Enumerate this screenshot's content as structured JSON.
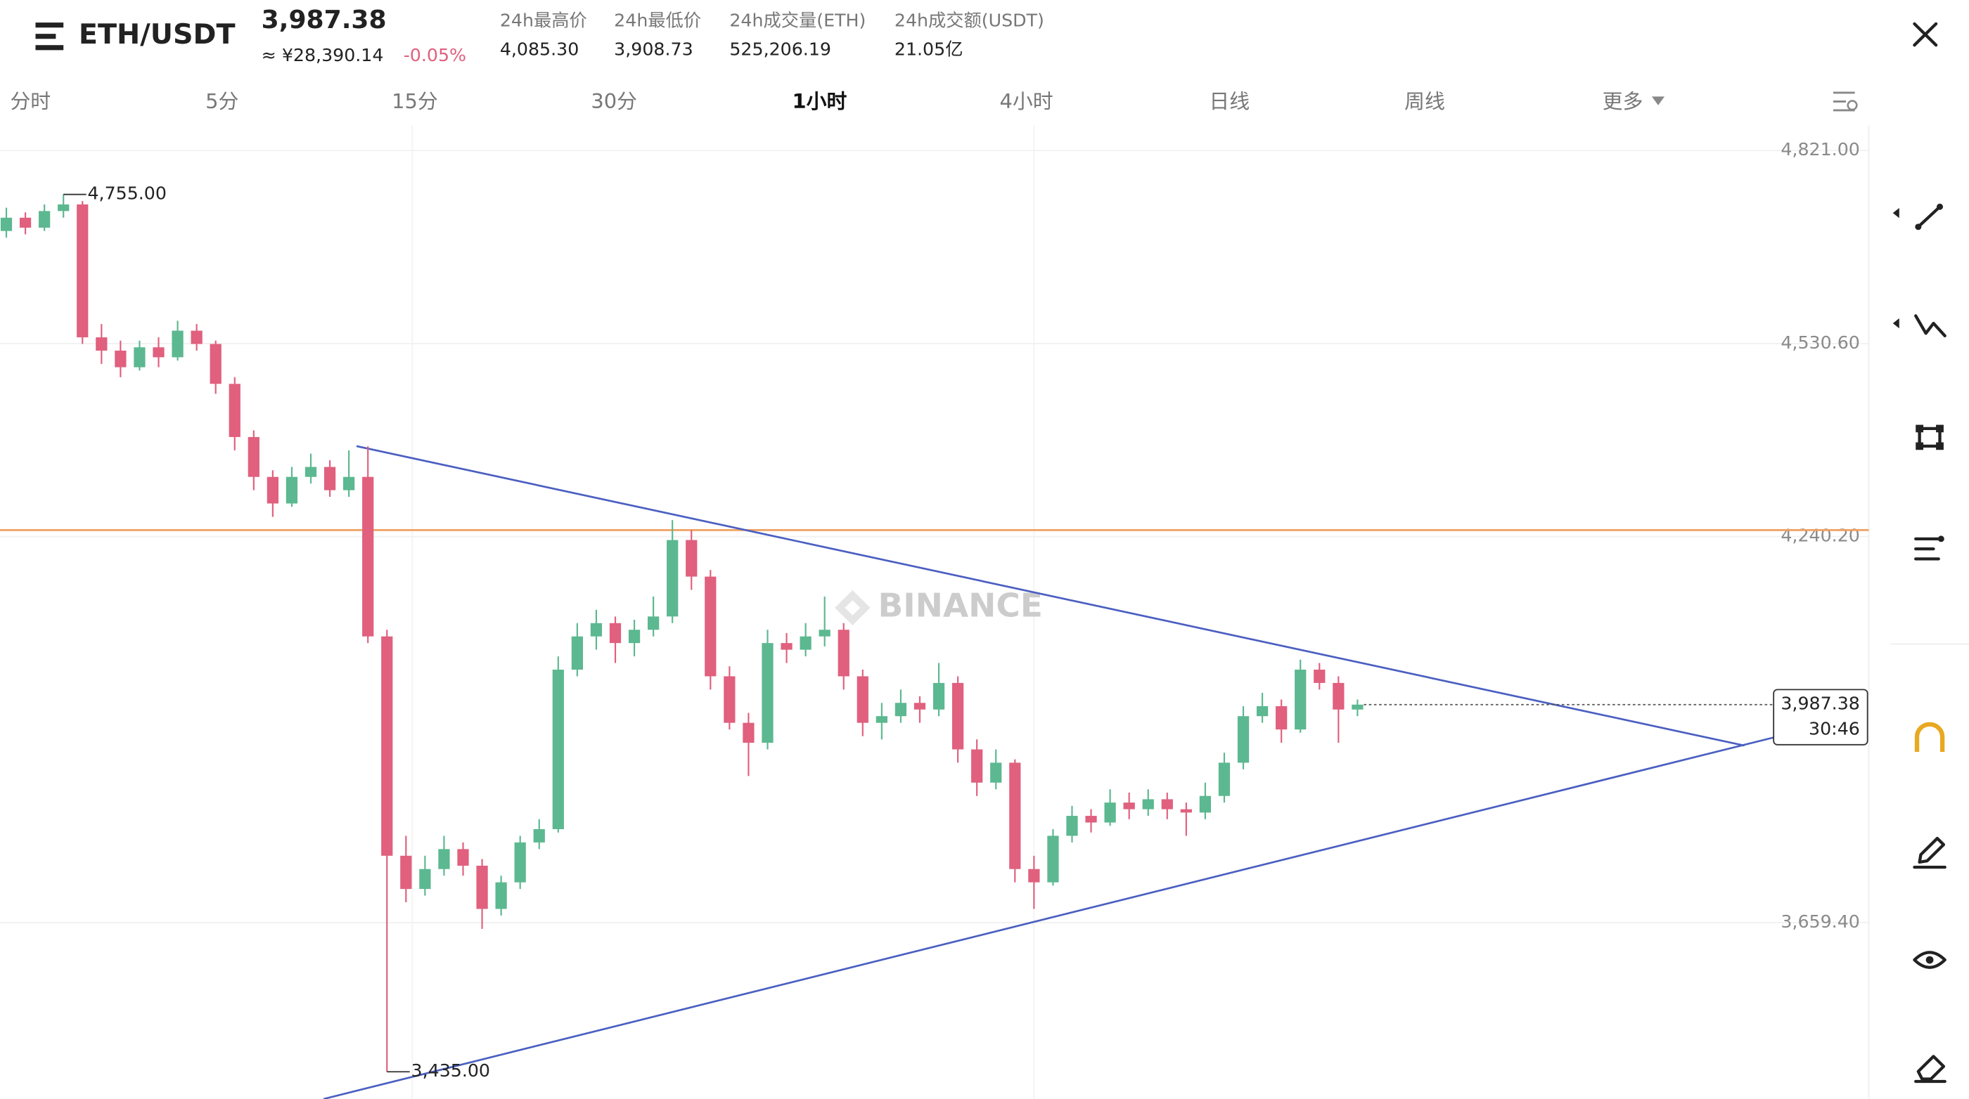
{
  "header": {
    "symbol": "ETH/USDT",
    "price": "3,987.38",
    "cny_price": "≈ ¥28,390.14",
    "change": "-0.05%",
    "stats": [
      {
        "label": "24h最高价",
        "value": "4,085.30"
      },
      {
        "label": "24h最低价",
        "value": "3,908.73"
      },
      {
        "label": "24h成交量(ETH)",
        "value": "525,206.19"
      },
      {
        "label": "24h成交额(USDT)",
        "value": "21.05亿"
      }
    ]
  },
  "tabs": [
    "分时",
    "5分",
    "15分",
    "30分",
    "1小时",
    "4小时",
    "日线",
    "周线",
    "更多"
  ],
  "active_tab": 4,
  "chart_data": {
    "type": "candlestick",
    "watermark": "BINANCE",
    "up_color": "#5cb890",
    "down_color": "#e0607e",
    "ylim": [
      3394,
      4859
    ],
    "yticks": [
      {
        "value": 4821,
        "label": "4,821.00"
      },
      {
        "value": 4530.6,
        "label": "4,530.60"
      },
      {
        "value": 4240.2,
        "label": "4,240.20"
      },
      {
        "value": 3659.4,
        "label": "3,659.40"
      }
    ],
    "grid": true,
    "high_marker": {
      "value": 4755,
      "label": "4,755.00"
    },
    "low_marker": {
      "value": 3435,
      "label": "3,435.00"
    },
    "last_price": {
      "value": 3987.38,
      "label": "3,987.38"
    },
    "countdown": "30:46",
    "candles": [
      [
        4700,
        4735,
        4690,
        4720
      ],
      [
        4720,
        4728,
        4695,
        4705
      ],
      [
        4705,
        4740,
        4700,
        4730
      ],
      [
        4730,
        4755,
        4720,
        4740
      ],
      [
        4740,
        4745,
        4530,
        4540
      ],
      [
        4540,
        4560,
        4500,
        4520
      ],
      [
        4520,
        4535,
        4480,
        4495
      ],
      [
        4495,
        4535,
        4490,
        4525
      ],
      [
        4525,
        4540,
        4495,
        4510
      ],
      [
        4510,
        4565,
        4505,
        4550
      ],
      [
        4550,
        4560,
        4520,
        4530
      ],
      [
        4530,
        4535,
        4455,
        4470
      ],
      [
        4470,
        4480,
        4370,
        4390
      ],
      [
        4390,
        4400,
        4310,
        4330
      ],
      [
        4330,
        4340,
        4270,
        4290
      ],
      [
        4290,
        4345,
        4285,
        4330
      ],
      [
        4330,
        4365,
        4320,
        4345
      ],
      [
        4345,
        4355,
        4300,
        4310
      ],
      [
        4310,
        4370,
        4300,
        4330
      ],
      [
        4330,
        4376,
        4080,
        4090
      ],
      [
        4090,
        4100,
        3435,
        3760
      ],
      [
        3760,
        3790,
        3690,
        3710
      ],
      [
        3710,
        3760,
        3700,
        3740
      ],
      [
        3740,
        3790,
        3730,
        3770
      ],
      [
        3770,
        3780,
        3730,
        3745
      ],
      [
        3745,
        3755,
        3650,
        3680
      ],
      [
        3680,
        3730,
        3670,
        3720
      ],
      [
        3720,
        3790,
        3710,
        3780
      ],
      [
        3780,
        3815,
        3770,
        3800
      ],
      [
        3800,
        4060,
        3795,
        4040
      ],
      [
        4040,
        4110,
        4030,
        4090
      ],
      [
        4090,
        4130,
        4070,
        4110
      ],
      [
        4110,
        4120,
        4050,
        4080
      ],
      [
        4080,
        4115,
        4060,
        4100
      ],
      [
        4100,
        4150,
        4090,
        4120
      ],
      [
        4120,
        4265,
        4110,
        4235
      ],
      [
        4235,
        4250,
        4160,
        4180
      ],
      [
        4180,
        4190,
        4010,
        4030
      ],
      [
        4030,
        4045,
        3950,
        3960
      ],
      [
        3960,
        3975,
        3880,
        3930
      ],
      [
        3930,
        4100,
        3920,
        4080
      ],
      [
        4080,
        4095,
        4050,
        4070
      ],
      [
        4070,
        4110,
        4060,
        4090
      ],
      [
        4090,
        4150,
        4075,
        4100
      ],
      [
        4100,
        4110,
        4010,
        4030
      ],
      [
        4030,
        4040,
        3940,
        3960
      ],
      [
        3960,
        3990,
        3935,
        3970
      ],
      [
        3970,
        4010,
        3960,
        3990
      ],
      [
        3990,
        4000,
        3960,
        3980
      ],
      [
        3980,
        4050,
        3970,
        4020
      ],
      [
        4020,
        4030,
        3900,
        3920
      ],
      [
        3920,
        3935,
        3850,
        3870
      ],
      [
        3870,
        3920,
        3860,
        3900
      ],
      [
        3900,
        3905,
        3720,
        3740
      ],
      [
        3740,
        3760,
        3680,
        3720
      ],
      [
        3720,
        3800,
        3715,
        3790
      ],
      [
        3790,
        3835,
        3780,
        3820
      ],
      [
        3820,
        3830,
        3795,
        3810
      ],
      [
        3810,
        3860,
        3805,
        3840
      ],
      [
        3840,
        3855,
        3815,
        3830
      ],
      [
        3830,
        3860,
        3820,
        3845
      ],
      [
        3845,
        3855,
        3815,
        3830
      ],
      [
        3830,
        3840,
        3790,
        3825
      ],
      [
        3825,
        3870,
        3815,
        3850
      ],
      [
        3850,
        3915,
        3840,
        3900
      ],
      [
        3900,
        3985,
        3890,
        3970
      ],
      [
        3970,
        4005,
        3960,
        3985
      ],
      [
        3985,
        3995,
        3930,
        3950
      ],
      [
        3950,
        4055,
        3945,
        4040
      ],
      [
        4040,
        4050,
        4010,
        4020
      ],
      [
        4020,
        4030,
        3930,
        3980
      ],
      [
        3980,
        3995,
        3970,
        3987.38
      ]
    ]
  }
}
